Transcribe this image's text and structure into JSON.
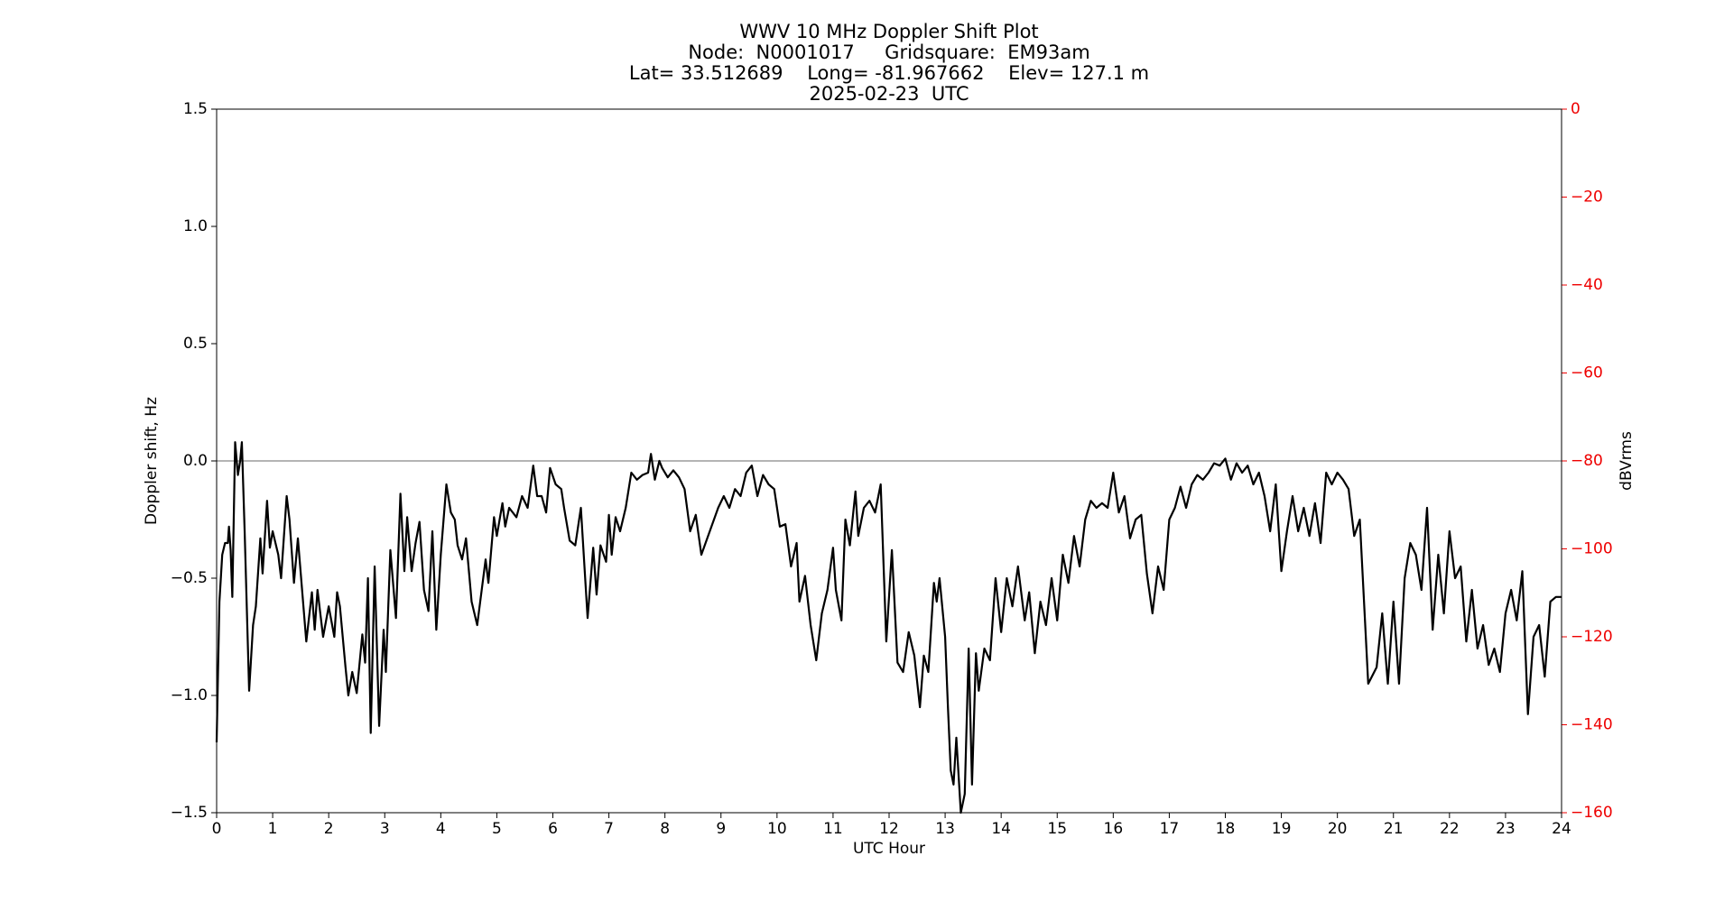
{
  "chart_data": {
    "type": "line",
    "title": [
      "WWV 10 MHz Doppler Shift Plot",
      "Node:  N0001017     Gridsquare:  EM93am",
      "Lat= 33.512689    Long= -81.967662    Elev= 127.1 m",
      "2025-02-23  UTC"
    ],
    "xlabel": "UTC Hour",
    "ylabel": "Doppler shift, Hz",
    "y2label": "dBVrms",
    "y2color": "#e00",
    "xlim": [
      0,
      24
    ],
    "xticks": [
      0,
      1,
      2,
      3,
      4,
      5,
      6,
      7,
      8,
      9,
      10,
      11,
      12,
      13,
      14,
      15,
      16,
      17,
      18,
      19,
      20,
      21,
      22,
      23,
      24
    ],
    "ylim": [
      -1.5,
      1.5
    ],
    "yticks": [
      {
        "value": -1.5,
        "label": "−1.5"
      },
      {
        "value": -1.0,
        "label": "−1.0"
      },
      {
        "value": -0.5,
        "label": "−0.5"
      },
      {
        "value": 0,
        "label": "0.0"
      },
      {
        "value": 0.5,
        "label": "0.5"
      },
      {
        "value": 1.0,
        "label": "1.0"
      },
      {
        "value": 1.5,
        "label": "1.5"
      }
    ],
    "y2lim": [
      -160,
      0
    ],
    "y2ticks": [
      0,
      {
        "value": -20,
        "label": "−20"
      },
      {
        "value": -40,
        "label": "−40"
      },
      {
        "value": -60,
        "label": "−60"
      },
      {
        "value": -80,
        "label": "−80"
      },
      {
        "value": -100,
        "label": "−100"
      },
      {
        "value": -120,
        "label": "−120"
      },
      {
        "value": -140,
        "label": "−140"
      },
      {
        "value": -160,
        "label": "−160"
      }
    ],
    "hline": 0,
    "x": [
      0,
      0.05,
      0.1,
      0.15,
      0.2,
      0.22,
      0.25,
      0.28,
      0.33,
      0.38,
      0.42,
      0.45,
      0.5,
      0.58,
      0.65,
      0.7,
      0.78,
      0.82,
      0.9,
      0.95,
      1.0,
      1.1,
      1.15,
      1.25,
      1.3,
      1.38,
      1.45,
      1.6,
      1.7,
      1.75,
      1.8,
      1.9,
      2.0,
      2.1,
      2.15,
      2.2,
      2.3,
      2.35,
      2.42,
      2.5,
      2.6,
      2.65,
      2.7,
      2.75,
      2.82,
      2.9,
      2.98,
      3.02,
      3.1,
      3.2,
      3.28,
      3.35,
      3.4,
      3.48,
      3.55,
      3.62,
      3.7,
      3.78,
      3.85,
      3.92,
      4.0,
      4.1,
      4.18,
      4.25,
      4.3,
      4.38,
      4.45,
      4.55,
      4.65,
      4.8,
      4.85,
      4.95,
      5.0,
      5.1,
      5.15,
      5.22,
      5.35,
      5.45,
      5.55,
      5.65,
      5.72,
      5.8,
      5.88,
      5.95,
      6.05,
      6.15,
      6.2,
      6.3,
      6.4,
      6.5,
      6.62,
      6.72,
      6.78,
      6.85,
      6.95,
      7.0,
      7.05,
      7.12,
      7.2,
      7.3,
      7.4,
      7.5,
      7.6,
      7.7,
      7.75,
      7.82,
      7.9,
      7.95,
      8.05,
      8.15,
      8.25,
      8.35,
      8.45,
      8.55,
      8.65,
      8.8,
      8.95,
      9.05,
      9.15,
      9.25,
      9.35,
      9.45,
      9.55,
      9.65,
      9.75,
      9.85,
      9.95,
      10.05,
      10.15,
      10.25,
      10.35,
      10.4,
      10.5,
      10.6,
      10.7,
      10.8,
      10.9,
      11.0,
      11.05,
      11.15,
      11.22,
      11.3,
      11.4,
      11.45,
      11.55,
      11.65,
      11.75,
      11.85,
      11.95,
      12.05,
      12.15,
      12.25,
      12.35,
      12.45,
      12.55,
      12.62,
      12.7,
      12.8,
      12.85,
      12.9,
      13.0,
      13.05,
      13.1,
      13.15,
      13.2,
      13.28,
      13.35,
      13.42,
      13.48,
      13.55,
      13.6,
      13.7,
      13.8,
      13.9,
      14.0,
      14.1,
      14.2,
      14.3,
      14.42,
      14.5,
      14.6,
      14.7,
      14.8,
      14.9,
      15.0,
      15.1,
      15.2,
      15.3,
      15.4,
      15.5,
      15.6,
      15.7,
      15.8,
      15.9,
      16.0,
      16.1,
      16.2,
      16.3,
      16.4,
      16.5,
      16.6,
      16.7,
      16.8,
      16.9,
      17.0,
      17.1,
      17.2,
      17.3,
      17.4,
      17.5,
      17.6,
      17.7,
      17.8,
      17.9,
      18.0,
      18.1,
      18.2,
      18.3,
      18.4,
      18.5,
      18.6,
      18.7,
      18.8,
      18.9,
      19.0,
      19.1,
      19.2,
      19.3,
      19.4,
      19.5,
      19.6,
      19.7,
      19.8,
      19.9,
      20.0,
      20.1,
      20.2,
      20.3,
      20.4,
      20.55,
      20.7,
      20.8,
      20.9,
      21.0,
      21.1,
      21.2,
      21.3,
      21.4,
      21.5,
      21.6,
      21.7,
      21.8,
      21.9,
      22.0,
      22.1,
      22.2,
      22.3,
      22.4,
      22.5,
      22.6,
      22.7,
      22.8,
      22.9,
      23.0,
      23.1,
      23.2,
      23.3,
      23.4,
      23.5,
      23.6,
      23.7,
      23.8,
      23.9,
      24.0
    ],
    "series": [
      {
        "color": "#000000",
        "values": [
          -1.2,
          -0.6,
          -0.4,
          -0.35,
          -0.35,
          -0.28,
          -0.38,
          -0.58,
          0.08,
          -0.06,
          0.0,
          0.08,
          -0.3,
          -0.98,
          -0.7,
          -0.62,
          -0.33,
          -0.48,
          -0.17,
          -0.37,
          -0.3,
          -0.4,
          -0.5,
          -0.15,
          -0.25,
          -0.52,
          -0.33,
          -0.77,
          -0.56,
          -0.72,
          -0.55,
          -0.75,
          -0.62,
          -0.75,
          -0.56,
          -0.62,
          -0.88,
          -1.0,
          -0.9,
          -0.99,
          -0.74,
          -0.86,
          -0.5,
          -1.16,
          -0.45,
          -1.13,
          -0.72,
          -0.9,
          -0.38,
          -0.67,
          -0.14,
          -0.47,
          -0.24,
          -0.47,
          -0.35,
          -0.26,
          -0.55,
          -0.64,
          -0.3,
          -0.72,
          -0.4,
          -0.1,
          -0.22,
          -0.25,
          -0.36,
          -0.42,
          -0.33,
          -0.6,
          -0.7,
          -0.42,
          -0.52,
          -0.24,
          -0.32,
          -0.18,
          -0.28,
          -0.2,
          -0.24,
          -0.15,
          -0.2,
          -0.02,
          -0.15,
          -0.15,
          -0.22,
          -0.03,
          -0.1,
          -0.12,
          -0.2,
          -0.34,
          -0.36,
          -0.2,
          -0.67,
          -0.37,
          -0.57,
          -0.36,
          -0.43,
          -0.23,
          -0.4,
          -0.24,
          -0.3,
          -0.2,
          -0.05,
          -0.08,
          -0.06,
          -0.05,
          0.03,
          -0.08,
          0.0,
          -0.03,
          -0.07,
          -0.04,
          -0.07,
          -0.12,
          -0.3,
          -0.23,
          -0.4,
          -0.3,
          -0.2,
          -0.15,
          -0.2,
          -0.12,
          -0.15,
          -0.05,
          -0.02,
          -0.15,
          -0.06,
          -0.1,
          -0.12,
          -0.28,
          -0.27,
          -0.45,
          -0.35,
          -0.6,
          -0.49,
          -0.7,
          -0.85,
          -0.65,
          -0.55,
          -0.37,
          -0.55,
          -0.68,
          -0.25,
          -0.36,
          -0.13,
          -0.32,
          -0.2,
          -0.17,
          -0.22,
          -0.1,
          -0.77,
          -0.38,
          -0.86,
          -0.9,
          -0.73,
          -0.83,
          -1.05,
          -0.83,
          -0.9,
          -0.52,
          -0.6,
          -0.5,
          -0.75,
          -1.05,
          -1.32,
          -1.38,
          -1.18,
          -1.5,
          -1.42,
          -0.8,
          -1.38,
          -0.82,
          -0.98,
          -0.8,
          -0.85,
          -0.5,
          -0.73,
          -0.5,
          -0.62,
          -0.45,
          -0.68,
          -0.56,
          -0.82,
          -0.6,
          -0.7,
          -0.5,
          -0.68,
          -0.4,
          -0.52,
          -0.32,
          -0.45,
          -0.25,
          -0.17,
          -0.2,
          -0.18,
          -0.2,
          -0.05,
          -0.22,
          -0.15,
          -0.33,
          -0.25,
          -0.23,
          -0.48,
          -0.65,
          -0.45,
          -0.55,
          -0.25,
          -0.2,
          -0.11,
          -0.2,
          -0.1,
          -0.06,
          -0.08,
          -0.05,
          -0.01,
          -0.02,
          0.01,
          -0.08,
          -0.01,
          -0.05,
          -0.02,
          -0.1,
          -0.05,
          -0.15,
          -0.3,
          -0.1,
          -0.47,
          -0.3,
          -0.15,
          -0.3,
          -0.2,
          -0.32,
          -0.18,
          -0.35,
          -0.05,
          -0.1,
          -0.05,
          -0.08,
          -0.12,
          -0.32,
          -0.25,
          -0.95,
          -0.88,
          -0.65,
          -0.95,
          -0.6,
          -0.95,
          -0.5,
          -0.35,
          -0.4,
          -0.55,
          -0.2,
          -0.72,
          -0.4,
          -0.65,
          -0.3,
          -0.5,
          -0.45,
          -0.77,
          -0.55,
          -0.8,
          -0.7,
          -0.87,
          -0.8,
          -0.9,
          -0.65,
          -0.55,
          -0.68,
          -0.47,
          -1.08,
          -0.75,
          -0.7,
          -0.92,
          -0.6,
          -0.58,
          -0.58
        ]
      }
    ]
  }
}
